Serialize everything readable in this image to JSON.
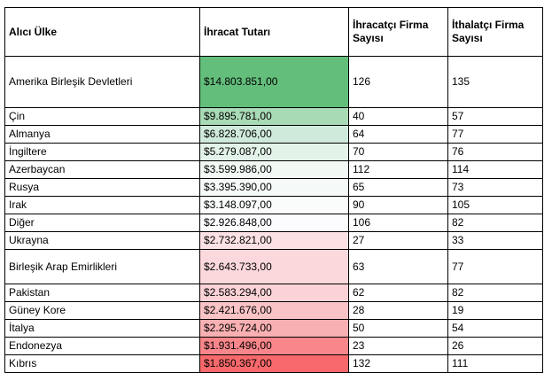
{
  "table": {
    "header": [
      "Alıcı Ülke",
      "İhracat Tutarı",
      "İhracatçı Firma Sayısı",
      "İthalatçı Firma Sayısı"
    ],
    "rows": [
      [
        "Amerika Birleşik Devletleri",
        "$14.803.851,00",
        "126",
        "135"
      ],
      [
        "Çin",
        "$9.895.781,00",
        "40",
        "57"
      ],
      [
        "Almanya",
        "$6.828.706,00",
        "64",
        "77"
      ],
      [
        "İngiltere",
        "$5.279.087,00",
        "70",
        "76"
      ],
      [
        "Azerbaycan",
        "$3.599.986,00",
        "112",
        "114"
      ],
      [
        "Rusya",
        "$3.395.390,00",
        "65",
        "73"
      ],
      [
        "Irak",
        "$3.148.097,00",
        "90",
        "105"
      ],
      [
        "Diğer",
        "$2.926.848,00",
        "106",
        "82"
      ],
      [
        "Ukrayna",
        "$2.732.821,00",
        "27",
        "33"
      ],
      [
        "Birleşik Arap Emirlikleri",
        "$2.643.733,00",
        "63",
        "77"
      ],
      [
        "Pakistan",
        "$2.583.294,00",
        "62",
        "82"
      ],
      [
        "Güney Kore",
        "$2.421.676,00",
        "28",
        "19"
      ],
      [
        "İtalya",
        "$2.295.724,00",
        "50",
        "54"
      ],
      [
        "Endonezya",
        "$1.931.496,00",
        "23",
        "26"
      ],
      [
        "Kıbrıs",
        "$1.850.367,00",
        "132",
        "111"
      ]
    ]
  }
}
